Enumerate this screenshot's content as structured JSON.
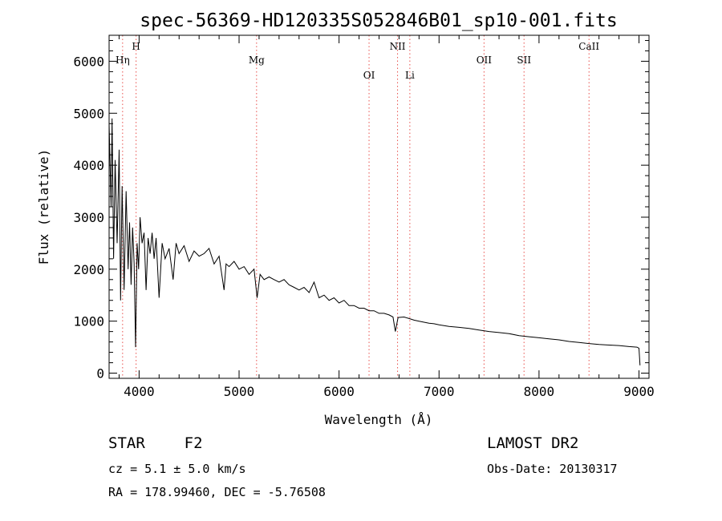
{
  "chart_data": {
    "type": "line",
    "title": "spec-56369-HD120335S052846B01_sp10-001.fits",
    "xlabel": "Wavelength (Å)",
    "ylabel": "Flux (relative)",
    "xlim": [
      3700,
      9100
    ],
    "ylim": [
      -100,
      6500
    ],
    "x_ticks": [
      4000,
      5000,
      6000,
      7000,
      8000,
      9000
    ],
    "y_ticks": [
      0,
      1000,
      2000,
      3000,
      4000,
      5000,
      6000
    ],
    "grid": false,
    "series": [
      {
        "color": "#000000",
        "points": [
          [
            3700,
            4800
          ],
          [
            3720,
            3200
          ],
          [
            3730,
            4900
          ],
          [
            3745,
            2200
          ],
          [
            3760,
            4100
          ],
          [
            3780,
            2500
          ],
          [
            3800,
            4300
          ],
          [
            3815,
            1400
          ],
          [
            3830,
            3600
          ],
          [
            3850,
            1600
          ],
          [
            3870,
            3500
          ],
          [
            3890,
            2000
          ],
          [
            3905,
            2900
          ],
          [
            3920,
            1700
          ],
          [
            3935,
            2800
          ],
          [
            3950,
            2100
          ],
          [
            3965,
            500
          ],
          [
            3980,
            2500
          ],
          [
            3995,
            2000
          ],
          [
            4010,
            3000
          ],
          [
            4030,
            2500
          ],
          [
            4050,
            2700
          ],
          [
            4070,
            1600
          ],
          [
            4090,
            2600
          ],
          [
            4110,
            2300
          ],
          [
            4130,
            2700
          ],
          [
            4150,
            2200
          ],
          [
            4170,
            2600
          ],
          [
            4200,
            1450
          ],
          [
            4230,
            2500
          ],
          [
            4260,
            2200
          ],
          [
            4300,
            2400
          ],
          [
            4340,
            1800
          ],
          [
            4370,
            2500
          ],
          [
            4400,
            2300
          ],
          [
            4450,
            2450
          ],
          [
            4500,
            2150
          ],
          [
            4550,
            2350
          ],
          [
            4600,
            2250
          ],
          [
            4650,
            2300
          ],
          [
            4700,
            2400
          ],
          [
            4750,
            2100
          ],
          [
            4800,
            2250
          ],
          [
            4850,
            1600
          ],
          [
            4870,
            2100
          ],
          [
            4900,
            2050
          ],
          [
            4950,
            2150
          ],
          [
            5000,
            2000
          ],
          [
            5050,
            2050
          ],
          [
            5100,
            1900
          ],
          [
            5150,
            2000
          ],
          [
            5180,
            1450
          ],
          [
            5210,
            1900
          ],
          [
            5250,
            1800
          ],
          [
            5300,
            1850
          ],
          [
            5350,
            1800
          ],
          [
            5400,
            1750
          ],
          [
            5450,
            1800
          ],
          [
            5500,
            1700
          ],
          [
            5550,
            1650
          ],
          [
            5600,
            1600
          ],
          [
            5650,
            1650
          ],
          [
            5700,
            1550
          ],
          [
            5750,
            1750
          ],
          [
            5800,
            1450
          ],
          [
            5850,
            1500
          ],
          [
            5900,
            1400
          ],
          [
            5950,
            1450
          ],
          [
            6000,
            1350
          ],
          [
            6050,
            1400
          ],
          [
            6100,
            1300
          ],
          [
            6150,
            1300
          ],
          [
            6200,
            1250
          ],
          [
            6250,
            1250
          ],
          [
            6300,
            1200
          ],
          [
            6350,
            1200
          ],
          [
            6400,
            1150
          ],
          [
            6450,
            1150
          ],
          [
            6500,
            1120
          ],
          [
            6540,
            1080
          ],
          [
            6563,
            800
          ],
          [
            6590,
            1070
          ],
          [
            6650,
            1080
          ],
          [
            6700,
            1050
          ],
          [
            6750,
            1020
          ],
          [
            6800,
            1000
          ],
          [
            6850,
            980
          ],
          [
            6900,
            960
          ],
          [
            6950,
            950
          ],
          [
            7000,
            930
          ],
          [
            7100,
            900
          ],
          [
            7200,
            880
          ],
          [
            7300,
            860
          ],
          [
            7400,
            830
          ],
          [
            7500,
            800
          ],
          [
            7600,
            780
          ],
          [
            7700,
            760
          ],
          [
            7800,
            720
          ],
          [
            7900,
            700
          ],
          [
            8000,
            680
          ],
          [
            8100,
            660
          ],
          [
            8200,
            640
          ],
          [
            8300,
            610
          ],
          [
            8400,
            590
          ],
          [
            8500,
            570
          ],
          [
            8600,
            550
          ],
          [
            8700,
            540
          ],
          [
            8800,
            530
          ],
          [
            8900,
            510
          ],
          [
            8980,
            500
          ],
          [
            9000,
            480
          ],
          [
            9010,
            150
          ]
        ]
      }
    ],
    "lines": [
      {
        "label": "Hη",
        "x": 3835
      },
      {
        "label": "H",
        "x": 3970
      },
      {
        "label": "Mg",
        "x": 5175
      },
      {
        "label": "OI",
        "x": 6300
      },
      {
        "label": "NII",
        "x": 6585
      },
      {
        "label": "Li",
        "x": 6708
      },
      {
        "label": "OII",
        "x": 7450
      },
      {
        "label": "SII",
        "x": 7850
      },
      {
        "label": "CaII",
        "x": 8500
      }
    ],
    "line_color": "#e8504c"
  },
  "footer": {
    "object_type": "STAR",
    "subclass": "F2",
    "survey": "LAMOST DR2",
    "cz": "cz = 5.1 ± 5.0 km/s",
    "obs_date": "Obs-Date: 20130317",
    "coords": "RA = 178.99460, DEC =  -5.76508"
  }
}
